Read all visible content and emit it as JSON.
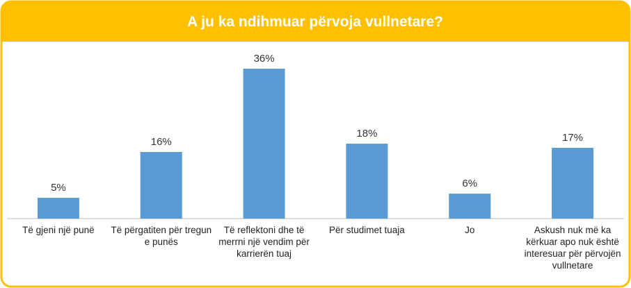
{
  "chart_data": {
    "type": "bar",
    "title": "A ju ka ndihmuar përvoja vullnetare?",
    "categories": [
      "Të gjeni një punë",
      "Të përgatiten për tregun e punës",
      "Të reflektoni dhe të merrni një vendim për karrierën tuaj",
      "Për studimet tuaja",
      "Jo",
      "Askush nuk më ka kërkuar apo nuk është interesuar për përvojën vullnetare"
    ],
    "values": [
      5,
      16,
      36,
      18,
      6,
      17
    ],
    "value_labels": [
      "5%",
      "16%",
      "36%",
      "18%",
      "6%",
      "17%"
    ],
    "color": "#5b9bd5"
  }
}
